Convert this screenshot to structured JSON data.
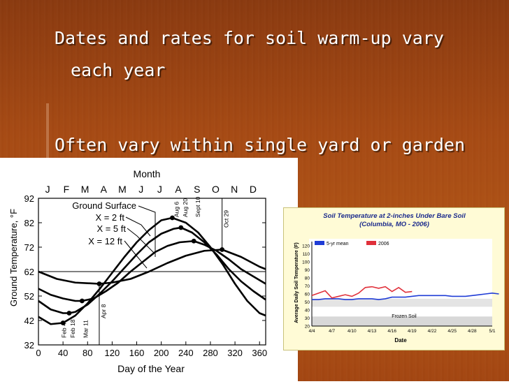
{
  "slide": {
    "bullet1_line1": "Dates and rates for soil warm-up vary",
    "bullet1_line2": "each year",
    "bullet2": "Often vary within single yard or garden"
  },
  "figure_left": {
    "title": "Month",
    "months": [
      "J",
      "F",
      "M",
      "A",
      "M",
      "J",
      "J",
      "A",
      "S",
      "O",
      "N",
      "D"
    ],
    "ylabel": "Ground Temperature, °F",
    "xlabel": "Day of the Year",
    "x_ticks": [
      "0",
      "40",
      "80",
      "120",
      "160",
      "200",
      "240",
      "280",
      "320",
      "360"
    ],
    "y_ticks": [
      "92",
      "82",
      "72",
      "62",
      "52",
      "42",
      "32"
    ],
    "series_labels": [
      "Ground Surface",
      "X = 2 ft",
      "X = 5 ft",
      "X = 12 ft"
    ],
    "date_annotations": [
      "Feb 4",
      "Feb 18",
      "Mar 11",
      "Apr 8",
      "Aug 6",
      "Aug 20",
      "Sept 10",
      "Oct 29"
    ]
  },
  "figure_right": {
    "title_line1": "Soil Temperature at 2-inches Under Bare Soil",
    "title_line2": "(Columbia, MO - 2006)",
    "ylabel": "Average Daily Soil Temperature (F)",
    "xlabel": "Date",
    "legend": [
      "5-yr mean",
      "2006"
    ],
    "annotation": "Frozen Soil",
    "x_ticks": [
      "4/4",
      "4/7",
      "4/10",
      "4/13",
      "4/16",
      "4/19",
      "4/22",
      "4/25",
      "4/28",
      "5/1"
    ],
    "y_ticks": [
      "120",
      "110",
      "100",
      "90",
      "80",
      "70",
      "60",
      "50",
      "40",
      "30",
      "20"
    ],
    "colors": {
      "mean": "#1f3cd6",
      "year2006": "#e0303a",
      "title": "#1a2a8c"
    }
  },
  "chart_data": [
    {
      "type": "line",
      "title": "Month",
      "xlabel": "Day of the Year",
      "ylabel": "Ground Temperature, °F",
      "xlim": [
        0,
        370
      ],
      "ylim": [
        32,
        92
      ],
      "series": [
        {
          "name": "Ground Surface",
          "x": [
            0,
            20,
            40,
            60,
            80,
            100,
            120,
            140,
            160,
            180,
            200,
            218,
            240,
            260,
            280,
            300,
            320,
            340,
            360,
            370
          ],
          "y": [
            43.5,
            40.5,
            41,
            44,
            49,
            55,
            61.5,
            68,
            74,
            79,
            83,
            84,
            82,
            78,
            72,
            65,
            57,
            50,
            45,
            44
          ]
        },
        {
          "name": "X = 2 ft",
          "x": [
            0,
            20,
            40,
            50,
            60,
            80,
            100,
            120,
            140,
            160,
            180,
            200,
            220,
            232,
            250,
            270,
            290,
            310,
            330,
            350,
            370
          ],
          "y": [
            50,
            46.5,
            45,
            45,
            45.5,
            48.5,
            53,
            58,
            63.5,
            69,
            74,
            77.5,
            79.5,
            80,
            78,
            74,
            69,
            63,
            58,
            54,
            50.5
          ]
        },
        {
          "name": "X = 5 ft",
          "x": [
            0,
            20,
            40,
            60,
            71,
            90,
            110,
            130,
            150,
            170,
            190,
            210,
            230,
            253,
            270,
            290,
            310,
            330,
            350,
            370
          ],
          "y": [
            55,
            52.5,
            51,
            50,
            50,
            51,
            54,
            57.5,
            62,
            66,
            70,
            72.5,
            74,
            74.5,
            73,
            70.5,
            67,
            63,
            60,
            57
          ]
        },
        {
          "name": "X = 12 ft",
          "x": [
            0,
            30,
            60,
            99,
            120,
            150,
            180,
            210,
            240,
            270,
            299,
            330,
            360,
            370
          ],
          "y": [
            62,
            59,
            57.5,
            57,
            57.5,
            59,
            62,
            65.5,
            68.5,
            70.5,
            71,
            68,
            64,
            63
          ]
        }
      ]
    },
    {
      "type": "line",
      "title": "Soil Temperature at 2-inches Under Bare Soil",
      "subtitle": "(Columbia, MO - 2006)",
      "xlabel": "Date",
      "ylabel": "Average Daily Soil Temperature (F)",
      "categories": [
        "4/4",
        "4/7",
        "4/10",
        "4/13",
        "4/16",
        "4/19",
        "4/22",
        "4/25",
        "4/28",
        "5/1"
      ],
      "ylim": [
        20,
        120
      ],
      "series": [
        {
          "name": "5-yr mean",
          "x": [
            0,
            1,
            2,
            3,
            4,
            5,
            6,
            7,
            8,
            9,
            10,
            11,
            12,
            13,
            14,
            15,
            16,
            17,
            18,
            19,
            20,
            21,
            22,
            23,
            24,
            25,
            26,
            27,
            28
          ],
          "y": [
            53,
            53,
            54,
            54,
            54,
            53,
            53,
            54,
            54,
            54,
            53,
            54,
            56,
            56,
            56,
            57,
            58,
            58,
            58,
            58,
            58,
            57,
            57,
            57,
            58,
            59,
            60,
            61,
            60
          ]
        },
        {
          "name": "2006",
          "x": [
            0,
            1,
            2,
            3,
            4,
            5,
            6,
            7,
            8,
            9,
            10,
            11,
            12,
            13,
            14,
            15
          ],
          "y": [
            58,
            61,
            64,
            55,
            57,
            59,
            57,
            61,
            68,
            69,
            67,
            69,
            63,
            68,
            62,
            63
          ]
        }
      ]
    }
  ]
}
